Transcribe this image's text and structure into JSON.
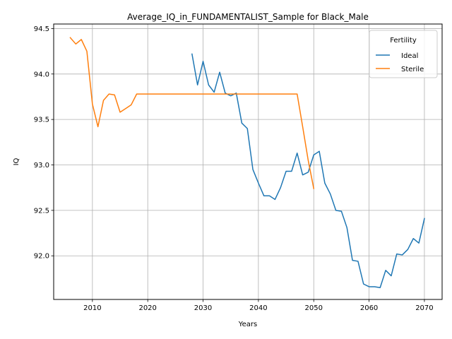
{
  "chart_data": {
    "type": "line",
    "title": "Average_IQ_in_FUNDAMENTALIST_Sample for Black_Male",
    "xlabel": "Years",
    "ylabel": "IQ",
    "xlim": [
      2003,
      2073.2
    ],
    "ylim": [
      91.52,
      94.55
    ],
    "xticks": [
      2010,
      2020,
      2030,
      2040,
      2050,
      2060,
      2070
    ],
    "yticks": [
      92.0,
      92.5,
      93.0,
      93.5,
      94.0,
      94.5
    ],
    "xtick_labels": [
      "2010",
      "2020",
      "2030",
      "2040",
      "2050",
      "2060",
      "2070"
    ],
    "ytick_labels": [
      "92.0",
      "92.5",
      "93.0",
      "93.5",
      "94.0",
      "94.5"
    ],
    "grid": true,
    "legend": {
      "title": "Fertility",
      "placement": "top-right"
    },
    "series": [
      {
        "name": "Ideal",
        "color": "#1f77b4",
        "x": [
          2028,
          2029,
          2030,
          2031,
          2032,
          2033,
          2034,
          2035,
          2036,
          2037,
          2038,
          2039,
          2040,
          2041,
          2042,
          2043,
          2044,
          2045,
          2046,
          2047,
          2048,
          2049,
          2050,
          2051,
          2052,
          2053,
          2054,
          2055,
          2056,
          2057,
          2058,
          2059,
          2060,
          2061,
          2062,
          2063,
          2064,
          2065,
          2066,
          2067,
          2068,
          2069,
          2070
        ],
        "y": [
          94.22,
          93.88,
          94.14,
          93.88,
          93.8,
          94.02,
          93.79,
          93.76,
          93.79,
          93.46,
          93.4,
          92.95,
          92.8,
          92.66,
          92.66,
          92.62,
          92.75,
          92.93,
          92.93,
          93.13,
          92.89,
          92.92,
          93.11,
          93.15,
          92.8,
          92.68,
          92.5,
          92.49,
          92.31,
          91.95,
          91.94,
          91.69,
          91.66,
          91.66,
          91.65,
          91.84,
          91.78,
          92.02,
          92.01,
          92.07,
          92.19,
          92.14,
          92.41
        ]
      },
      {
        "name": "Sterile",
        "color": "#ff7f0e",
        "x": [
          2006,
          2007,
          2008,
          2009,
          2010,
          2011,
          2012,
          2013,
          2014,
          2015,
          2016,
          2017,
          2018,
          2019,
          2020,
          2021,
          2022,
          2023,
          2024,
          2025,
          2026,
          2027,
          2028,
          2029,
          2030,
          2031,
          2032,
          2033,
          2034,
          2035,
          2036,
          2037,
          2038,
          2039,
          2040,
          2041,
          2042,
          2043,
          2044,
          2045,
          2046,
          2047,
          2048,
          2049,
          2050
        ],
        "y": [
          94.4,
          94.33,
          94.38,
          94.25,
          93.67,
          93.42,
          93.71,
          93.78,
          93.77,
          93.58,
          93.62,
          93.66,
          93.78,
          93.78,
          93.78,
          93.78,
          93.78,
          93.78,
          93.78,
          93.78,
          93.78,
          93.78,
          93.78,
          93.78,
          93.78,
          93.78,
          93.78,
          93.78,
          93.78,
          93.78,
          93.78,
          93.78,
          93.78,
          93.78,
          93.78,
          93.78,
          93.78,
          93.78,
          93.78,
          93.78,
          93.78,
          93.78,
          93.42,
          93.05,
          92.74
        ]
      }
    ]
  }
}
